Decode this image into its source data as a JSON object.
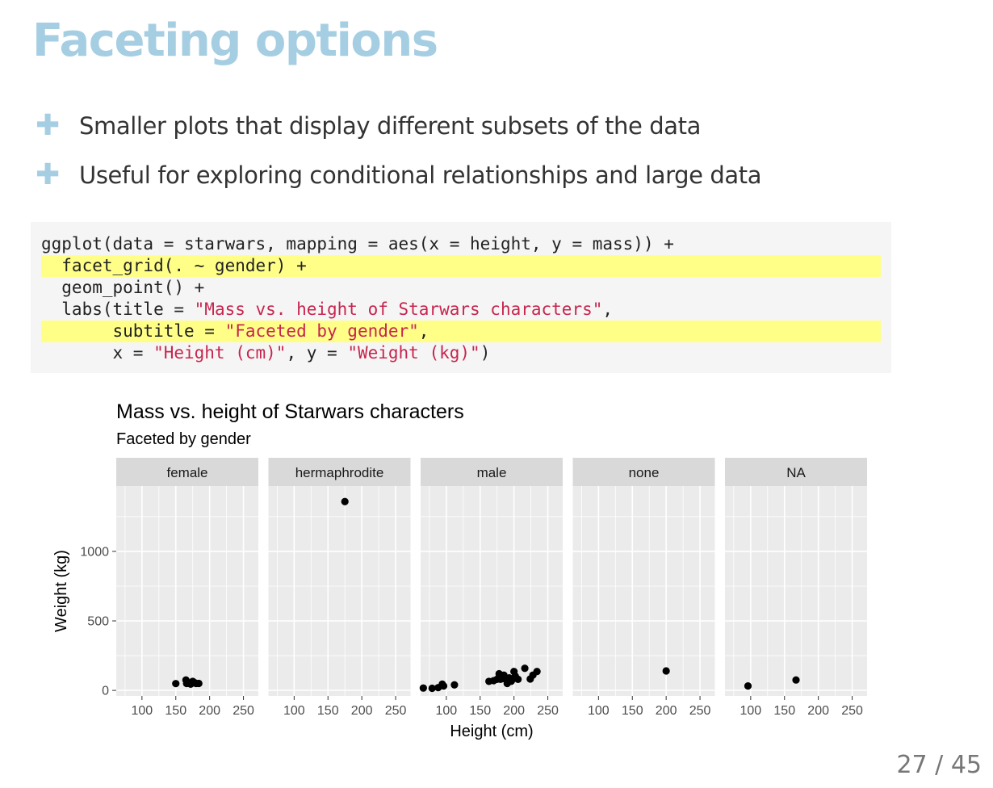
{
  "slide": {
    "title": "Faceting options",
    "bullets": [
      "Smaller plots that display different subsets of the data",
      "Useful for exploring conditional relationships and large data"
    ],
    "code_lines": [
      {
        "highlight": false,
        "parts": [
          {
            "t": "ggplot(data = starwars, mapping = aes(x = height, y = mass)) +"
          }
        ]
      },
      {
        "highlight": true,
        "parts": [
          {
            "t": "  facet_grid(. ~ gender) +"
          }
        ]
      },
      {
        "highlight": false,
        "parts": [
          {
            "t": "  geom_point() +"
          }
        ]
      },
      {
        "highlight": false,
        "parts": [
          {
            "t": "  labs(title = "
          },
          {
            "t": "\"Mass vs. height of Starwars characters\"",
            "str": true
          },
          {
            "t": ","
          }
        ]
      },
      {
        "highlight": true,
        "parts": [
          {
            "t": "       subtitle = "
          },
          {
            "t": "\"Faceted by gender\"",
            "str": true
          },
          {
            "t": ","
          }
        ]
      },
      {
        "highlight": false,
        "parts": [
          {
            "t": "       x = "
          },
          {
            "t": "\"Height (cm)\"",
            "str": true
          },
          {
            "t": ", y = "
          },
          {
            "t": "\"Weight (kg)\"",
            "str": true
          },
          {
            "t": ")"
          }
        ]
      }
    ],
    "page": "27 / 45"
  },
  "chart_data": {
    "type": "scatter",
    "title": "Mass vs. height of Starwars characters",
    "subtitle": "Faceted by gender",
    "xlabel": "Height (cm)",
    "ylabel": "Weight (kg)",
    "xlim": [
      62,
      272
    ],
    "ylim": [
      -40,
      1470
    ],
    "xticks": [
      100,
      150,
      200,
      250
    ],
    "yticks": [
      0,
      500,
      1000
    ],
    "grid": true,
    "colors": {
      "panel": "#ebebeb",
      "strip": "#d9d9d9",
      "point": "#000000",
      "grid": "#ffffff"
    },
    "facets": [
      {
        "label": "female",
        "points": [
          [
            150,
            49
          ],
          [
            165,
            75
          ],
          [
            166,
            50
          ],
          [
            168,
            55
          ],
          [
            172,
            45
          ],
          [
            175,
            65
          ],
          [
            178,
            55
          ],
          [
            180,
            50
          ],
          [
            184,
            50
          ]
        ]
      },
      {
        "label": "hermaphrodite",
        "points": [
          [
            175,
            1358
          ]
        ]
      },
      {
        "label": "male",
        "points": [
          [
            66,
            17
          ],
          [
            79,
            15
          ],
          [
            88,
            20
          ],
          [
            94,
            45
          ],
          [
            96,
            32
          ],
          [
            112,
            40
          ],
          [
            163,
            65
          ],
          [
            170,
            70
          ],
          [
            175,
            80
          ],
          [
            178,
            120
          ],
          [
            180,
            80
          ],
          [
            183,
            85
          ],
          [
            185,
            110
          ],
          [
            188,
            90
          ],
          [
            190,
            50
          ],
          [
            191,
            78
          ],
          [
            193,
            90
          ],
          [
            196,
            66
          ],
          [
            198,
            82
          ],
          [
            200,
            136
          ],
          [
            202,
            102
          ],
          [
            206,
            80
          ],
          [
            216,
            159
          ],
          [
            224,
            82
          ],
          [
            228,
            110
          ],
          [
            234,
            136
          ]
        ]
      },
      {
        "label": "none",
        "points": [
          [
            200,
            140
          ]
        ]
      },
      {
        "label": "NA",
        "points": [
          [
            96,
            32
          ],
          [
            167,
            75
          ]
        ]
      }
    ]
  }
}
